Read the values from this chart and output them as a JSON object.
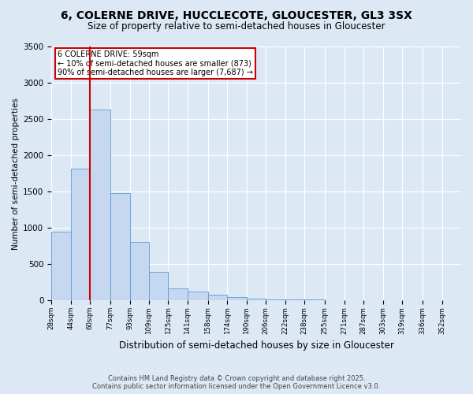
{
  "title": "6, COLERNE DRIVE, HUCCLECOTE, GLOUCESTER, GL3 3SX",
  "subtitle": "Size of property relative to semi-detached houses in Gloucester",
  "xlabel": "Distribution of semi-detached houses by size in Gloucester",
  "ylabel": "Number of semi-detached properties",
  "property_label": "6 COLERNE DRIVE: 59sqm",
  "annotation_line1": "← 10% of semi-detached houses are smaller (873)",
  "annotation_line2": "90% of semi-detached houses are larger (7,687) →",
  "bin_labels": [
    "28sqm",
    "44sqm",
    "60sqm",
    "77sqm",
    "93sqm",
    "109sqm",
    "125sqm",
    "141sqm",
    "158sqm",
    "174sqm",
    "190sqm",
    "206sqm",
    "222sqm",
    "238sqm",
    "255sqm",
    "271sqm",
    "287sqm",
    "303sqm",
    "319sqm",
    "336sqm",
    "352sqm"
  ],
  "bin_edges": [
    28,
    44,
    60,
    77,
    93,
    109,
    125,
    141,
    158,
    174,
    190,
    206,
    222,
    238,
    255,
    271,
    287,
    303,
    319,
    336,
    352,
    368
  ],
  "bar_heights": [
    950,
    1820,
    2630,
    1480,
    810,
    390,
    170,
    120,
    80,
    40,
    20,
    15,
    10,
    8,
    5,
    3,
    2,
    1,
    1,
    0,
    0
  ],
  "bar_color": "#c5d8f0",
  "bar_edge_color": "#5b9bd5",
  "vline_x": 60,
  "vline_color": "#cc0000",
  "box_color": "#cc0000",
  "background_color": "#dce9f5",
  "ylim": [
    0,
    3500
  ],
  "yticks": [
    0,
    500,
    1000,
    1500,
    2000,
    2500,
    3000,
    3500
  ],
  "footer_line1": "Contains HM Land Registry data © Crown copyright and database right 2025.",
  "footer_line2": "Contains public sector information licensed under the Open Government Licence v3.0."
}
